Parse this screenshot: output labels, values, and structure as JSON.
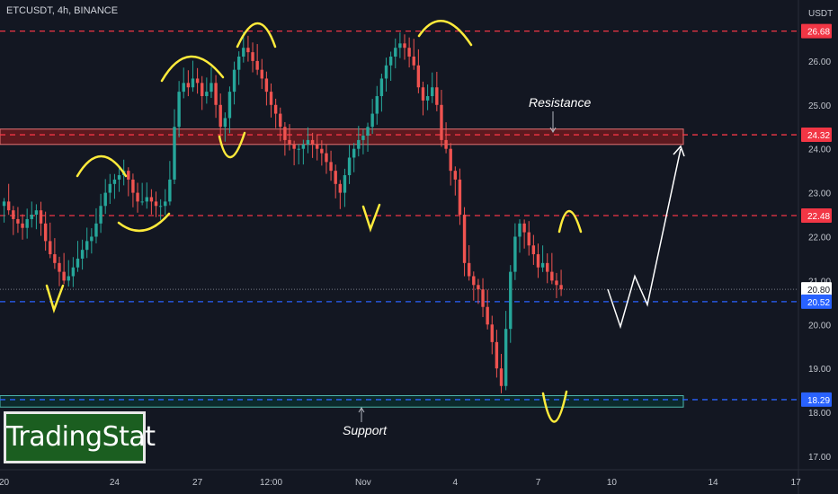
{
  "header": {
    "symbol_info": "ETCUSDT, 4h, BINANCE"
  },
  "logo": {
    "text": "TradingStat"
  },
  "annotations": {
    "resistance": "Resistance",
    "support": "Support"
  },
  "colors": {
    "background": "#131722",
    "up": "#26a69a",
    "down": "#ef5350",
    "resistance_line": "#f23645",
    "blue_line": "#2962ff",
    "pattern_marks": "#ffeb3b",
    "arrow": "#ffffff",
    "support_zone_border": "#4db6ac"
  },
  "chart_data": {
    "type": "candlestick",
    "title": "ETCUSDT, 4h, BINANCE",
    "ylabel": "USDT",
    "ylim": [
      16.8,
      27.5
    ],
    "y_ticks": [
      17.0,
      18.0,
      19.0,
      20.0,
      21.0,
      22.0,
      23.0,
      24.0,
      25.0,
      26.0
    ],
    "x_ticks": [
      "20",
      "24",
      "27",
      "12:00",
      "Nov",
      "4",
      "7",
      "10",
      "14",
      "17"
    ],
    "x_tick_index": [
      0,
      24,
      42,
      58,
      78,
      98,
      116,
      132,
      154,
      172
    ],
    "price_labels": [
      {
        "value": 26.68,
        "text": "26.68",
        "kind": "resistance"
      },
      {
        "value": 24.32,
        "text": "24.32",
        "kind": "resistance"
      },
      {
        "value": 22.48,
        "text": "22.48",
        "kind": "resistance"
      },
      {
        "value": 20.8,
        "text": "20.80",
        "kind": "last"
      },
      {
        "value": 20.52,
        "text": "20.52",
        "kind": "blue"
      },
      {
        "value": 18.29,
        "text": "18.29",
        "kind": "blue"
      }
    ],
    "horizontal_lines": [
      {
        "value": 26.68,
        "color": "#f23645"
      },
      {
        "value": 24.32,
        "color": "#f23645"
      },
      {
        "value": 22.48,
        "color": "#f23645"
      },
      {
        "value": 20.52,
        "color": "#2962ff"
      },
      {
        "value": 18.29,
        "color": "#2962ff"
      }
    ],
    "zones": [
      {
        "name": "resistance-zone",
        "low": 24.1,
        "high": 24.45
      },
      {
        "name": "support-zone",
        "low": 18.12,
        "high": 18.38
      }
    ],
    "close_series": [
      22.8,
      22.6,
      22.4,
      22.3,
      22.2,
      22.4,
      22.5,
      22.6,
      22.3,
      21.9,
      21.6,
      21.4,
      21.2,
      21.0,
      21.1,
      21.3,
      21.5,
      21.7,
      21.9,
      22.0,
      22.3,
      22.7,
      23.0,
      23.2,
      23.3,
      23.4,
      23.5,
      23.3,
      23.0,
      22.8,
      22.8,
      22.9,
      22.8,
      22.7,
      22.7,
      22.8,
      23.3,
      24.5,
      25.3,
      25.5,
      25.4,
      25.6,
      25.5,
      25.2,
      25.3,
      25.5,
      25.0,
      24.5,
      24.7,
      25.3,
      25.8,
      26.1,
      26.3,
      26.2,
      26.0,
      25.8,
      25.6,
      25.3,
      25.0,
      24.8,
      24.5,
      24.2,
      24.1,
      24.0,
      24.0,
      24.1,
      24.2,
      24.1,
      24.0,
      23.9,
      23.7,
      23.5,
      23.2,
      23.0,
      23.4,
      23.8,
      24.0,
      24.2,
      24.3,
      24.5,
      24.8,
      25.2,
      25.6,
      25.9,
      26.1,
      26.3,
      26.4,
      26.3,
      26.1,
      25.9,
      25.4,
      25.1,
      25.2,
      25.4,
      25.0,
      24.2,
      24.0,
      23.5,
      23.3,
      22.5,
      21.4,
      21.1,
      20.9,
      20.8,
      20.4,
      20.0,
      19.6,
      19.0,
      18.6,
      19.9,
      21.2,
      22.0,
      22.3,
      22.1,
      21.8,
      21.6,
      21.3,
      21.4,
      21.2,
      21.0,
      20.9,
      20.8
    ],
    "projection": [
      [
        20.8,
        0
      ],
      [
        19.95,
        1
      ],
      [
        21.1,
        2
      ],
      [
        20.45,
        3
      ],
      [
        24.0,
        4
      ]
    ],
    "pattern_marks": "yellow hand-drawn peaks and troughs"
  }
}
